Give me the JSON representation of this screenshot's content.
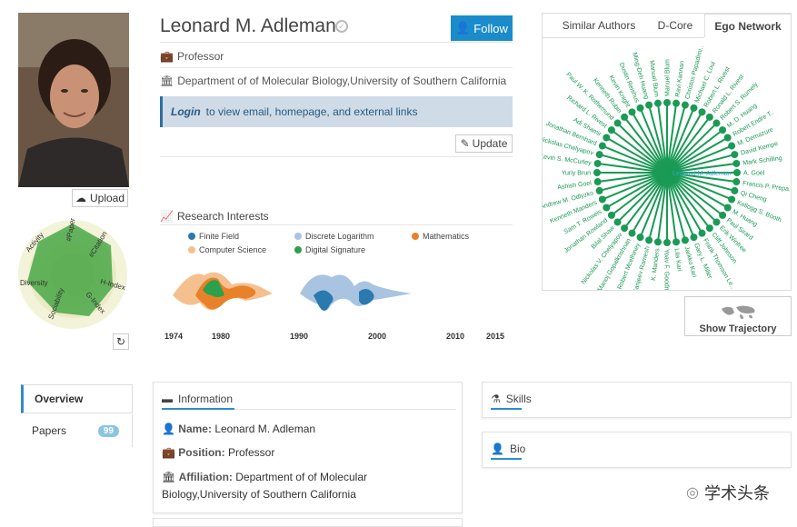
{
  "profile": {
    "name": "Leonard M. Adleman",
    "follow_label": "Follow",
    "upload_label": "Upload",
    "position": "Professor",
    "affiliation": "Department of of Molecular Biology,University of Southern California",
    "login_link": "Login",
    "login_text": "to view email, homepage, and external links",
    "update_label": "Update"
  },
  "radar": {
    "axes": [
      "#Papers",
      "#Citation",
      "H-Index",
      "G-Index",
      "Sociability",
      "Diversity",
      "Activity"
    ]
  },
  "research": {
    "title": "Research Interests",
    "legend": [
      {
        "label": "Finite Field",
        "color": "#2a7ab0"
      },
      {
        "label": "Discrete Logarithm",
        "color": "#a9c4e0"
      },
      {
        "label": "Mathematics",
        "color": "#e8812a"
      },
      {
        "label": "Computer Science",
        "color": "#f5c090"
      },
      {
        "label": "Digital Signature",
        "color": "#2ca04c"
      }
    ],
    "years": [
      "1974",
      "1980",
      "1990",
      "2000",
      "2010",
      "2015"
    ]
  },
  "tabs": [
    {
      "label": "Similar Authors"
    },
    {
      "label": "D-Core"
    },
    {
      "label": "Ego Network"
    }
  ],
  "ego_network": {
    "center": "Leonard M. Adleman",
    "color": "#1a9a55",
    "names": [
      "Manuel Blum",
      "Ravi Kannan",
      "Christos Papadimi..",
      "Michael C. Loui",
      "Robert L. Rivest",
      "Ronald L. Rivest",
      "Robert S. Rumely",
      "M. D. Huang",
      "Robert Endre T..",
      "M. Demazure",
      "David Kempe",
      "Mark Schilling",
      "A. Goel",
      "Francis P. Prepa..",
      "Qi Cheng",
      "Kellogg S. Booth",
      "M. Huang",
      "Paul Sirard",
      "Erik Winfree",
      "Cliff Johnson",
      "Frank Thomson Le..",
      "Gary L. Miller",
      "Jarkko Kari",
      "Lila Kari",
      "Yoav F. Goodman",
      "K. Manders",
      "Sanjeev Ramesh",
      "Robert Mcelhiney",
      "Manoj Gopalkrishnan",
      "Nickolas V. Chelyapov",
      "Bilal Shaw",
      "Jonathan Rowland",
      "Sam T. Roweis",
      "Kenneth Manders",
      "Andrew M. Odlyzko",
      "Ashish Goel",
      "Yuriy Brun",
      "Kevin S. McCurley",
      "Nickolas Chelyapov",
      "Jonathan Bernhard",
      "Adi Shamir",
      "Richard L. Rivest",
      "Paul W. K. Rothemund",
      "Kenneth Rubin",
      "Kevin Knight",
      "Dustin Reishus",
      "Ming-Deh Huang",
      "Manuel Blum"
    ],
    "trajectory_label": "Show Trajectory"
  },
  "sidenav": {
    "overview": "Overview",
    "papers": "Papers",
    "papers_count": "99"
  },
  "info": {
    "title": "Information",
    "name_label": "Name:",
    "name_value": "Leonard M. Adleman",
    "position_label": "Position:",
    "position_value": "Professor",
    "affiliation_label": "Affiliation:",
    "affiliation_value_1": "Department of of Molecular",
    "affiliation_value_2": "Biology,University of Southern California"
  },
  "skills_title": "Skills",
  "bio_title": "Bio",
  "watermark": "学术头条"
}
